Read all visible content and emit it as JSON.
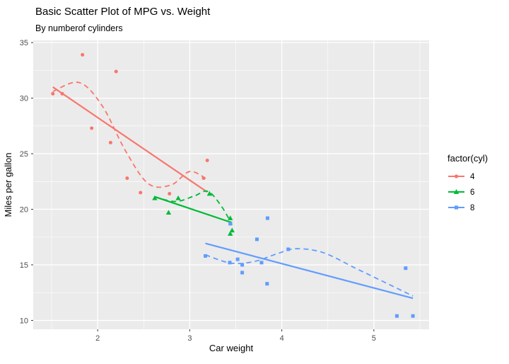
{
  "chart_data": {
    "type": "scatter",
    "title": "Basic Scatter Plot of MPG vs. Weight",
    "subtitle": "By numberof cylinders",
    "xlabel": "Car weight",
    "ylabel": "Miles per gallon",
    "xlim": [
      1.3,
      5.6
    ],
    "ylim": [
      9.2,
      35.2
    ],
    "x_ticks": [
      2,
      3,
      4,
      5
    ],
    "y_ticks": [
      10,
      15,
      20,
      25,
      30,
      35
    ],
    "x_minor_ticks": [
      1.5,
      2.5,
      3.5,
      4.5,
      5.5
    ],
    "y_minor_ticks": [
      12.5,
      17.5,
      22.5,
      27.5,
      32.5
    ],
    "legend_title": "factor(cyl)",
    "legend_position": "right",
    "panel_background": "#EBEBEB",
    "grid_color": "#FFFFFF",
    "series": [
      {
        "name": "4",
        "color": "#F8766D",
        "marker": "circle",
        "points": [
          [
            2.32,
            22.8
          ],
          [
            3.19,
            24.4
          ],
          [
            3.15,
            22.8
          ],
          [
            2.2,
            32.4
          ],
          [
            1.615,
            30.4
          ],
          [
            1.835,
            33.9
          ],
          [
            2.465,
            21.5
          ],
          [
            1.935,
            27.3
          ],
          [
            2.14,
            26.0
          ],
          [
            1.513,
            30.4
          ],
          [
            2.78,
            21.4
          ]
        ],
        "lm_line": [
          [
            1.513,
            31.0
          ],
          [
            3.19,
            21.55
          ]
        ],
        "loess_curve": [
          [
            1.513,
            30.6
          ],
          [
            1.8,
            31.4
          ],
          [
            2.05,
            29.3
          ],
          [
            2.3,
            25.3
          ],
          [
            2.55,
            22.3
          ],
          [
            2.8,
            22.2
          ],
          [
            3.0,
            23.4
          ],
          [
            3.19,
            22.7
          ]
        ]
      },
      {
        "name": "6",
        "color": "#00BA38",
        "marker": "triangle",
        "points": [
          [
            2.62,
            21.0
          ],
          [
            2.875,
            21.0
          ],
          [
            3.215,
            21.4
          ],
          [
            3.46,
            18.1
          ],
          [
            3.44,
            19.2
          ],
          [
            3.44,
            17.8
          ],
          [
            2.77,
            19.7
          ]
        ],
        "lm_line": [
          [
            2.62,
            21.13
          ],
          [
            3.46,
            18.79
          ]
        ],
        "loess_curve": [
          [
            2.62,
            21.1
          ],
          [
            2.85,
            20.7
          ],
          [
            3.05,
            21.2
          ],
          [
            3.2,
            21.6
          ],
          [
            3.35,
            20.2
          ],
          [
            3.46,
            18.6
          ]
        ]
      },
      {
        "name": "8",
        "color": "#619CFF",
        "marker": "square",
        "points": [
          [
            3.44,
            18.7
          ],
          [
            3.57,
            14.3
          ],
          [
            4.07,
            16.4
          ],
          [
            3.73,
            17.3
          ],
          [
            3.78,
            15.2
          ],
          [
            5.25,
            10.4
          ],
          [
            5.424,
            10.4
          ],
          [
            5.345,
            14.7
          ],
          [
            3.52,
            15.5
          ],
          [
            3.435,
            15.2
          ],
          [
            3.84,
            13.3
          ],
          [
            3.845,
            19.2
          ],
          [
            3.17,
            15.8
          ],
          [
            3.57,
            15.0
          ]
        ],
        "lm_line": [
          [
            3.17,
            16.93
          ],
          [
            5.424,
            11.99
          ]
        ],
        "loess_curve": [
          [
            3.17,
            15.9
          ],
          [
            3.45,
            15.15
          ],
          [
            3.7,
            15.3
          ],
          [
            3.95,
            16.0
          ],
          [
            4.15,
            16.45
          ],
          [
            4.45,
            16.1
          ],
          [
            4.8,
            14.7
          ],
          [
            5.1,
            13.5
          ],
          [
            5.424,
            12.2
          ]
        ]
      }
    ]
  }
}
